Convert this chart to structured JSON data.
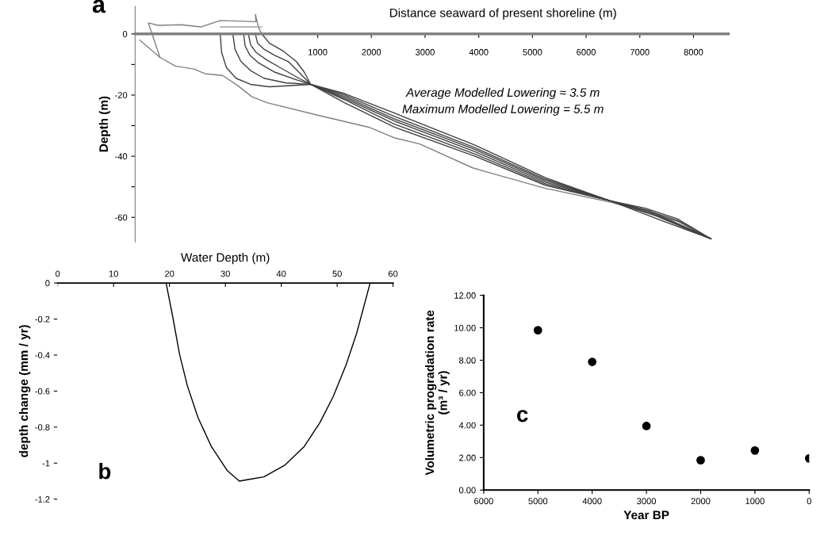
{
  "chart_data": [
    {
      "type": "line",
      "xlabel": "Distance seaward of present shoreline (m)",
      "ylabel": "Depth (m)",
      "annotations": [
        "a",
        "Average Modelled Lowering ≈ 3.5 m",
        "Maximum Modelled Lowering = 5.5 m"
      ],
      "xlim": [
        -2400,
        8650
      ],
      "ylim": [
        -68,
        9
      ],
      "xticks": [
        1000,
        2000,
        3000,
        4000,
        5000,
        6000,
        7000,
        8000
      ],
      "yticks": [
        0,
        {
          "value": -10,
          "label": null
        },
        -20,
        {
          "value": -30,
          "label": null
        },
        -40,
        {
          "value": -50,
          "label": null
        },
        -60
      ],
      "series": [
        {
          "color": "#808080",
          "x": [
            -2314,
            -1936,
            -1650,
            -1300,
            -1100,
            -770,
            -480,
            -230,
            60,
            980,
            1950,
            2430,
            2900,
            3886,
            4236,
            5240,
            6450,
            7700,
            8326
          ],
          "values": [
            -2,
            -7.7,
            -10.5,
            -11.5,
            -13,
            -13.6,
            -17,
            -20.5,
            -22.5,
            -26.5,
            -30.5,
            -34,
            -36,
            -43.8,
            -45.6,
            -50.5,
            -55,
            -61.3,
            -67
          ]
        },
        {
          "color": "#808080",
          "x": [
            -1936,
            -2154,
            -1970,
            -1540,
            -1170,
            -815,
            -150,
            -160,
            -100,
            -40
          ],
          "values": [
            -7.7,
            3.6,
            2.8,
            3.0,
            2.3,
            4.4,
            4.0,
            6.4,
            2,
            0
          ]
        },
        {
          "color": "#a0a0a0",
          "x": [
            -815,
            -40
          ],
          "values": [
            2.3,
            2.3
          ]
        },
        {
          "color": "#404040",
          "x": [
            -815,
            -790,
            -700,
            -520,
            -250,
            100,
            870,
            1500,
            2430,
            3930,
            5240,
            6450,
            7400,
            8326
          ],
          "values": [
            0,
            -6,
            -11,
            -14.5,
            -16.5,
            -17.3,
            -16.5,
            -22.5,
            -30.5,
            -40,
            -49.5,
            -54.6,
            -61,
            -67
          ]
        },
        {
          "color": "#404040",
          "x": [
            -580,
            -540,
            -430,
            -250,
            0,
            400,
            870,
            1500,
            2430,
            3930,
            5240,
            6450,
            7300,
            8326
          ],
          "values": [
            0,
            -5,
            -9,
            -12,
            -14.5,
            -16,
            -16.5,
            -21.5,
            -29.5,
            -39.3,
            -49,
            -54.6,
            -59.5,
            -67
          ]
        },
        {
          "color": "#404040",
          "x": [
            -380,
            -350,
            -260,
            -100,
            200,
            600,
            870,
            1500,
            2430,
            3930,
            5240,
            6450,
            7200,
            8326
          ],
          "values": [
            0,
            -4,
            -7,
            -9.5,
            -12.5,
            -15,
            -16.5,
            -21,
            -28.5,
            -38.5,
            -48.5,
            -54.6,
            -58.5,
            -67
          ]
        },
        {
          "color": "#404040",
          "x": [
            -290,
            -250,
            -150,
            50,
            300,
            650,
            870,
            1500,
            2430,
            3930,
            5240,
            6450,
            7200,
            8326
          ],
          "values": [
            0,
            -3.5,
            -6,
            -8.5,
            -11,
            -14.5,
            -16.5,
            -20.5,
            -27.8,
            -37.8,
            -48,
            -54.6,
            -58,
            -67
          ]
        },
        {
          "color": "#404040",
          "x": [
            -160,
            -120,
            0,
            200,
            450,
            650,
            870,
            1500,
            2430,
            3930,
            5240,
            6450,
            7100,
            7700,
            8326
          ],
          "values": [
            0,
            -3,
            -5,
            -7,
            -9,
            -12.5,
            -16.5,
            -20,
            -27,
            -37.2,
            -47.5,
            -54.6,
            -57.5,
            -61,
            -67
          ]
        },
        {
          "color": "#404040",
          "x": [
            -40,
            100,
            350,
            600,
            750,
            870,
            1500,
            2430,
            3930,
            5240,
            6450,
            7100,
            7700,
            8326
          ],
          "values": [
            0,
            -3,
            -5.5,
            -9,
            -12.5,
            -16.5,
            -19.5,
            -25.9,
            -36.4,
            -47,
            -54.6,
            -57,
            -60.5,
            -67
          ]
        }
      ]
    },
    {
      "type": "line",
      "xlabel": "Water Depth (m)",
      "ylabel": "depth change (mm / yr)",
      "annotations": [
        "b"
      ],
      "xlim": [
        0,
        60
      ],
      "ylim": [
        -1.2,
        0
      ],
      "xticks": [
        0,
        10,
        20,
        30,
        40,
        50,
        60
      ],
      "yticks": [
        0,
        -0.2,
        -0.4,
        -0.6,
        -0.8,
        -1,
        -1.2
      ],
      "series": [
        {
          "color": "#000000",
          "x": [
            19.4,
            20.6,
            21.8,
            23.2,
            25.1,
            27.5,
            30.3,
            32.5,
            34.1,
            36.9,
            40.7,
            44.1,
            46.9,
            49.3,
            51.6,
            53.5,
            55.9
          ],
          "values": [
            0,
            -0.19,
            -0.395,
            -0.57,
            -0.747,
            -0.908,
            -1.04,
            -1.1,
            -1.091,
            -1.076,
            -1.01,
            -0.908,
            -0.776,
            -0.63,
            -0.454,
            -0.278,
            0
          ]
        }
      ]
    },
    {
      "type": "scatter",
      "xlabel": "Year BP",
      "ylabel": "Volumetric progradation rate\n(m³ / yr)",
      "annotations": [
        "c"
      ],
      "marker": "circle",
      "xlim": [
        6000,
        0
      ],
      "ylim": [
        0,
        12
      ],
      "xticks": [
        6000,
        5000,
        4000,
        3000,
        2000,
        1000,
        0
      ],
      "yticks": [
        {
          "value": 0,
          "label": "0.00"
        },
        {
          "value": 2,
          "label": "2.00"
        },
        {
          "value": 4,
          "label": "4.00"
        },
        {
          "value": 6,
          "label": "6.00"
        },
        {
          "value": 8,
          "label": "8.00"
        },
        {
          "value": 10,
          "label": "10.00"
        },
        {
          "value": 12,
          "label": "12.00"
        }
      ],
      "series": [
        {
          "color": "#000000",
          "x": [
            5000,
            4000,
            3000,
            2000,
            1000,
            0
          ],
          "values": [
            9.85,
            7.9,
            3.95,
            1.84,
            2.44,
            1.95
          ]
        }
      ]
    }
  ]
}
